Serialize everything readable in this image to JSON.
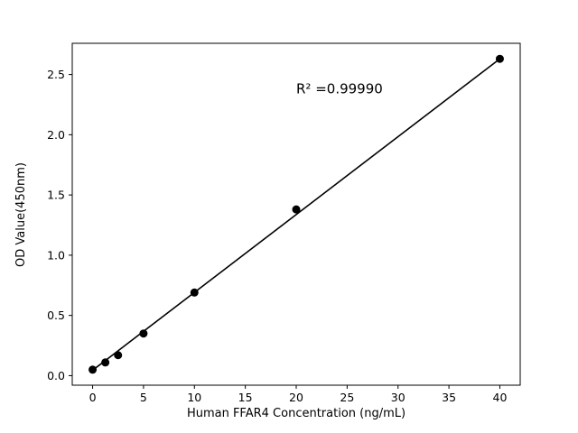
{
  "chart_data": {
    "type": "scatter",
    "title": "",
    "xlabel": "Human FFAR4 Concentration (ng/mL)",
    "ylabel": "OD Value(450nm)",
    "x": [
      0,
      1.25,
      2.5,
      5,
      10,
      20,
      40
    ],
    "y": [
      0.05,
      0.11,
      0.17,
      0.35,
      0.69,
      1.38,
      2.63
    ],
    "fit_line": {
      "x1": 0,
      "y1": 0.045,
      "x2": 40,
      "y2": 2.63
    },
    "xlim": [
      -2,
      42
    ],
    "ylim": [
      -0.079,
      2.759
    ],
    "xticks": [
      0,
      5,
      10,
      15,
      20,
      25,
      30,
      35,
      40
    ],
    "yticks": [
      0.0,
      0.5,
      1.0,
      1.5,
      2.0,
      2.5
    ],
    "grid": false,
    "legend": null,
    "annotation": {
      "text": "R² =0.99990",
      "x": 20,
      "y": 2.38
    },
    "point_color": "#000000",
    "line_color": "#000000",
    "background_color": "#ffffff"
  }
}
